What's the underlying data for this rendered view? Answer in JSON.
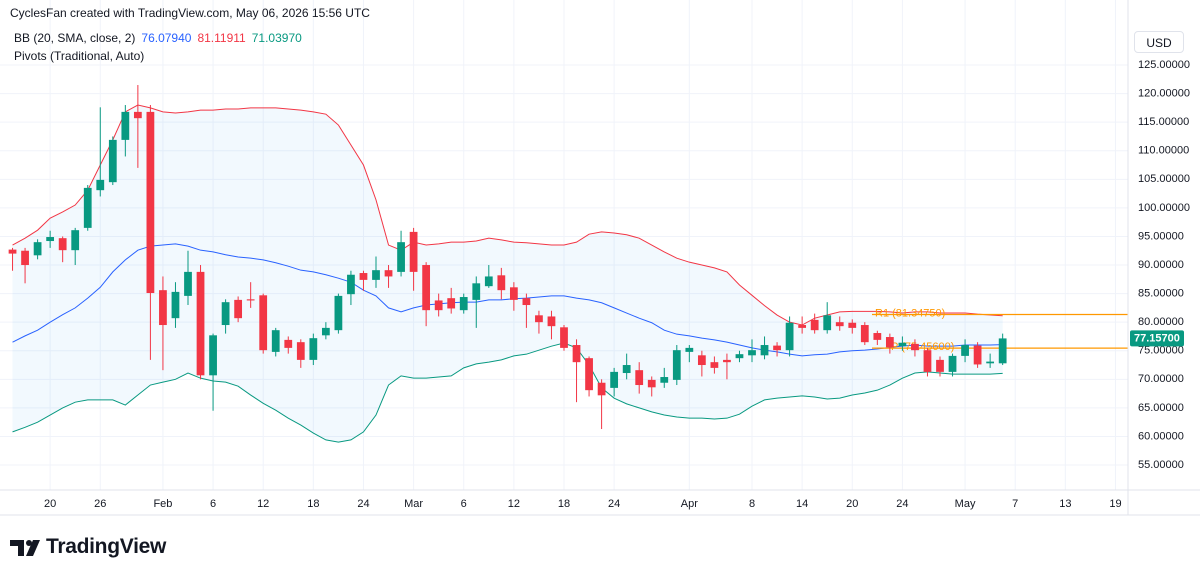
{
  "chart_data": {
    "type": "candlestick",
    "title": "CyclesFan created with TradingView.com, May 06, 2026 15:56 UTC",
    "pivots_label": "Pivots (Traditional, Auto)",
    "currency": "USD",
    "logo": "TradingView",
    "up_color": "#089981",
    "down_color": "#f23645",
    "grid": true,
    "x": [
      "2026-01-15",
      "2026-01-16",
      "2026-01-19",
      "2026-01-20",
      "2026-01-21",
      "2026-01-22",
      "2026-01-23",
      "2026-01-26",
      "2026-01-27",
      "2026-01-28",
      "2026-01-29",
      "2026-01-30",
      "2026-02-02",
      "2026-02-03",
      "2026-02-04",
      "2026-02-05",
      "2026-02-06",
      "2026-02-09",
      "2026-02-10",
      "2026-02-11",
      "2026-02-12",
      "2026-02-13",
      "2026-02-16",
      "2026-02-17",
      "2026-02-18",
      "2026-02-19",
      "2026-02-20",
      "2026-02-23",
      "2026-02-24",
      "2026-02-25",
      "2026-02-26",
      "2026-02-27",
      "2026-03-02",
      "2026-03-03",
      "2026-03-04",
      "2026-03-05",
      "2026-03-06",
      "2026-03-09",
      "2026-03-10",
      "2026-03-11",
      "2026-03-12",
      "2026-03-13",
      "2026-03-16",
      "2026-03-17",
      "2026-03-18",
      "2026-03-19",
      "2026-03-20",
      "2026-03-23",
      "2026-03-24",
      "2026-03-25",
      "2026-03-26",
      "2026-03-27",
      "2026-03-30",
      "2026-03-31",
      "2026-04-01",
      "2026-04-02",
      "2026-04-03",
      "2026-04-06",
      "2026-04-07",
      "2026-04-08",
      "2026-04-09",
      "2026-04-10",
      "2026-04-13",
      "2026-04-14",
      "2026-04-15",
      "2026-04-16",
      "2026-04-17",
      "2026-04-20",
      "2026-04-21",
      "2026-04-22",
      "2026-04-23",
      "2026-04-24",
      "2026-04-27",
      "2026-04-28",
      "2026-04-29",
      "2026-04-30",
      "2026-05-01",
      "2026-05-04",
      "2026-05-05",
      "2026-05-06"
    ],
    "open": [
      92.7,
      92.5,
      91.7,
      94.2,
      94.7,
      92.6,
      96.5,
      103.1,
      104.5,
      111.9,
      116.8,
      116.8,
      85.6,
      80.7,
      84.6,
      88.8,
      70.7,
      79.5,
      83.9,
      84.0,
      84.7,
      74.8,
      76.9,
      76.5,
      73.4,
      77.7,
      78.6,
      84.9,
      88.6,
      87.4,
      89.1,
      88.8,
      95.8,
      90.0,
      83.8,
      84.2,
      82.1,
      83.9,
      86.3,
      88.2,
      86.1,
      84.2,
      81.2,
      81.0,
      79.1,
      76.0,
      73.7,
      69.4,
      68.5,
      71.1,
      71.6,
      69.9,
      69.4,
      69.9,
      74.8,
      74.2,
      73.0,
      73.4,
      73.7,
      74.2,
      74.2,
      75.9,
      75.1,
      79.5,
      80.4,
      78.6,
      80.0,
      79.9,
      79.5,
      78.1,
      77.4,
      75.8,
      76.2,
      75.1,
      73.4,
      71.3,
      74.1,
      75.9,
      72.8,
      72.8
    ],
    "high": [
      93,
      93,
      94.5,
      96,
      95,
      96.5,
      104,
      117.6,
      112.5,
      118,
      121.5,
      118,
      88,
      87,
      92.5,
      90,
      78,
      84,
      84.5,
      87,
      85,
      79,
      77.5,
      77,
      78,
      80,
      85,
      89,
      89,
      91.5,
      90,
      96,
      96.5,
      90.5,
      85,
      86,
      85,
      88,
      90,
      89.5,
      87,
      85,
      82,
      82,
      79.5,
      77,
      74,
      70,
      72,
      74.5,
      73,
      70.5,
      72,
      76,
      76,
      75,
      74,
      74.5,
      75,
      77,
      77.5,
      76.5,
      81,
      81,
      81.5,
      83.5,
      81,
      80.5,
      80,
      78.5,
      78,
      77.5,
      77,
      75.5,
      74,
      74.5,
      77,
      76.5,
      74.5,
      78
    ],
    "low": [
      89,
      86.8,
      91,
      93,
      90.5,
      90,
      96,
      102,
      104,
      109,
      107,
      73.4,
      71.6,
      79,
      83,
      70,
      64.5,
      78,
      80,
      82.5,
      74.5,
      74,
      74.5,
      72,
      72.5,
      77,
      78,
      83,
      85.5,
      86,
      86,
      88,
      85.5,
      79.3,
      81,
      81.5,
      81.5,
      79,
      86,
      84,
      82,
      79,
      78,
      77,
      75,
      66,
      67,
      61.3,
      67,
      70,
      67.5,
      67,
      68.5,
      69,
      73,
      70.5,
      71,
      70,
      73,
      73,
      73.5,
      74,
      74,
      78,
      78,
      78,
      78.5,
      78,
      76,
      76,
      74.5,
      75,
      74,
      70.5,
      70.5,
      70.5,
      73,
      72,
      72,
      72.5
    ],
    "close": [
      92.0,
      90.0,
      94.0,
      94.9,
      92.6,
      96.1,
      103.5,
      104.9,
      111.9,
      116.8,
      115.7,
      85.1,
      79.5,
      85.3,
      88.8,
      70.7,
      77.7,
      83.5,
      80.7,
      83.8,
      75.1,
      78.6,
      75.5,
      73.4,
      77.2,
      79.0,
      84.6,
      88.3,
      87.4,
      89.1,
      88.0,
      94.0,
      88.8,
      82.1,
      82.1,
      82.4,
      84.4,
      86.8,
      88.0,
      85.6,
      83.9,
      83.0,
      80.0,
      79.3,
      75.5,
      73.0,
      68.1,
      67.2,
      71.3,
      72.5,
      69.0,
      68.6,
      70.4,
      75.1,
      75.5,
      72.5,
      72.0,
      73.0,
      74.4,
      75.1,
      76.0,
      75.1,
      79.9,
      79.0,
      78.6,
      81.2,
      79.3,
      79.0,
      76.5,
      76.9,
      75.6,
      76.4,
      75.1,
      71.3,
      71.3,
      74.1,
      76.0,
      72.6,
      73.1,
      77.157
    ],
    "last_value_label": "77.15700",
    "bb": {
      "label": "BB (20, SMA, close, 2)",
      "fill": "rgba(33,150,243,0.06)",
      "lines": [
        {
          "color": "#2962ff",
          "value_label": "76.07940",
          "values": [
            76.5,
            77.6,
            78.6,
            80.0,
            81.3,
            82.5,
            84.2,
            86.1,
            88.8,
            90.9,
            92.6,
            93.3,
            93.5,
            93.7,
            93.3,
            92.6,
            92.3,
            91.8,
            91.4,
            91.2,
            90.9,
            90.4,
            89.8,
            89.1,
            88.8,
            88.3,
            87.7,
            87.0,
            85.6,
            84.6,
            82.5,
            81.8,
            82.5,
            83.0,
            83.2,
            83.4,
            83.5,
            83.5,
            83.9,
            83.9,
            84.1,
            84.2,
            84.4,
            84.6,
            84.6,
            84.2,
            83.9,
            83.4,
            82.5,
            81.6,
            80.7,
            79.9,
            78.6,
            77.9,
            77.6,
            77.2,
            76.9,
            76.5,
            76.0,
            75.5,
            75.1,
            74.8,
            74.4,
            74.1,
            74.3,
            74.4,
            74.8,
            75.0,
            75.1,
            75.3,
            75.6,
            75.8,
            76.0,
            75.8,
            75.8,
            75.8,
            76.0,
            76.0,
            76.0,
            76.0794
          ]
        },
        {
          "color": "#f23645",
          "value_label": "81.11911",
          "values": [
            93.5,
            94.7,
            96.1,
            98.2,
            99.3,
            100.5,
            103.1,
            107.5,
            111.9,
            116.8,
            118.0,
            117.5,
            116.8,
            116.6,
            116.8,
            117.1,
            117.1,
            117.3,
            117.3,
            117.5,
            117.5,
            117.5,
            117.3,
            117.1,
            116.8,
            116.4,
            114.5,
            111.0,
            107.5,
            101.4,
            93.5,
            92.6,
            94.0,
            93.5,
            93.7,
            94.0,
            94.0,
            94.2,
            94.7,
            94.4,
            94.0,
            93.9,
            93.7,
            93.5,
            93.5,
            94.0,
            95.4,
            95.8,
            95.6,
            95.3,
            94.7,
            93.5,
            92.3,
            91.2,
            90.5,
            90.0,
            89.5,
            88.8,
            86.5,
            84.7,
            82.9,
            81.25,
            80.0,
            79.5,
            80.7,
            81.25,
            81.8,
            81.9,
            81.9,
            81.9,
            81.8,
            81.6,
            81.8,
            81.8,
            81.6,
            81.6,
            81.6,
            81.4,
            81.25,
            81.11911
          ]
        },
        {
          "color": "#089981",
          "value_label": "71.03970",
          "values": [
            60.8,
            61.6,
            62.5,
            63.75,
            65.0,
            66.0,
            66.4,
            66.4,
            66.4,
            65.5,
            67.25,
            69.0,
            69.5,
            70.0,
            71.1,
            70.2,
            69.7,
            69.5,
            68.8,
            67.25,
            65.8,
            64.6,
            63.2,
            62.0,
            60.6,
            59.4,
            59.0,
            59.4,
            60.8,
            63.75,
            69.0,
            70.6,
            70.2,
            70.2,
            70.4,
            70.6,
            72.0,
            72.7,
            73.0,
            73.4,
            74.1,
            74.4,
            75.1,
            75.8,
            76.35,
            75.5,
            72.5,
            68.5,
            66.7,
            65.7,
            65.0,
            64.3,
            63.75,
            63.4,
            63.2,
            63.2,
            63.05,
            63.2,
            63.9,
            65.3,
            66.4,
            66.7,
            66.9,
            67.1,
            66.9,
            66.55,
            66.7,
            67.25,
            67.6,
            68.1,
            69.0,
            70.2,
            71.1,
            71.3,
            71.1,
            70.9,
            70.9,
            70.9,
            70.9,
            71.0397
          ]
        }
      ]
    },
    "pivots": {
      "color": "#ff9800",
      "levels": [
        {
          "value": 81.3475,
          "label": "R1 (81.34750)"
        },
        {
          "value": 75.456,
          "label": "P (75.45600)"
        }
      ]
    },
    "xlim": [
      "2026-01-14",
      "2026-05-20"
    ],
    "xticks": [
      {
        "value": "2026-01-20",
        "label": "20"
      },
      {
        "value": "2026-01-26",
        "label": "26"
      },
      {
        "value": "2026-02-02",
        "label": "Feb"
      },
      {
        "value": "2026-02-06",
        "label": "6"
      },
      {
        "value": "2026-02-12",
        "label": "12"
      },
      {
        "value": "2026-02-18",
        "label": "18"
      },
      {
        "value": "2026-02-24",
        "label": "24"
      },
      {
        "value": "2026-03-02",
        "label": "Mar"
      },
      {
        "value": "2026-03-06",
        "label": "6"
      },
      {
        "value": "2026-03-12",
        "label": "12"
      },
      {
        "value": "2026-03-18",
        "label": "18"
      },
      {
        "value": "2026-03-24",
        "label": "24"
      },
      {
        "value": "2026-04-01",
        "label": "Apr"
      },
      {
        "value": "2026-04-08",
        "label": "8"
      },
      {
        "value": "2026-04-14",
        "label": "14"
      },
      {
        "value": "2026-04-20",
        "label": "20"
      },
      {
        "value": "2026-04-24",
        "label": "24"
      },
      {
        "value": "2026-05-01",
        "label": "May"
      },
      {
        "value": "2026-05-07",
        "label": "7"
      },
      {
        "value": "2026-05-13",
        "label": "13"
      },
      {
        "value": "2026-05-19",
        "label": "19"
      }
    ],
    "ylim": [
      50.63,
      131.48
    ],
    "yticks": [
      {
        "value": 55,
        "label": "55.00000"
      },
      {
        "value": 60,
        "label": "60.00000"
      },
      {
        "value": 65,
        "label": "65.00000"
      },
      {
        "value": 70,
        "label": "70.00000"
      },
      {
        "value": 75,
        "label": "75.00000"
      },
      {
        "value": 80,
        "label": "80.00000"
      },
      {
        "value": 85,
        "label": "85.00000"
      },
      {
        "value": 90,
        "label": "90.00000"
      },
      {
        "value": 95,
        "label": "95.00000"
      },
      {
        "value": 100,
        "label": "100.00000"
      },
      {
        "value": 105,
        "label": "105.00000"
      },
      {
        "value": 110,
        "label": "110.00000"
      },
      {
        "value": 115,
        "label": "115.00000"
      },
      {
        "value": 120,
        "label": "120.00000"
      },
      {
        "value": 125,
        "label": "125.00000"
      }
    ]
  }
}
